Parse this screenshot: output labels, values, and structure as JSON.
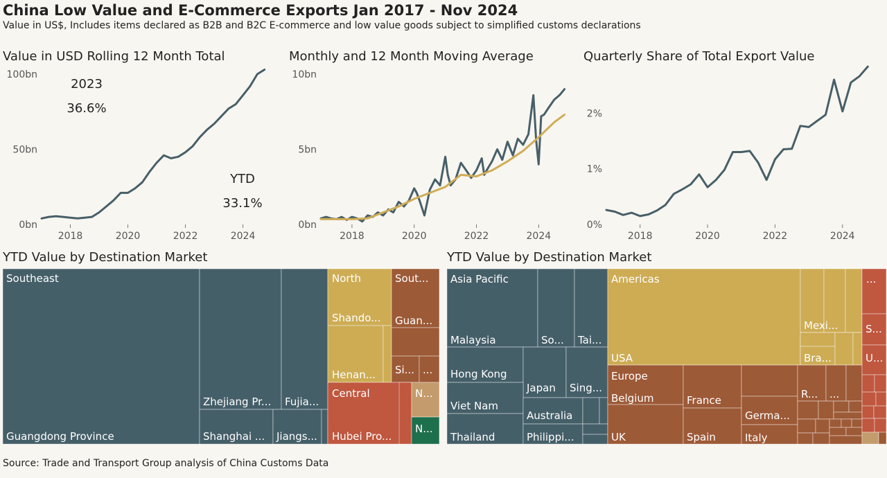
{
  "header": {
    "title": "China Low Value and E-Commerce Exports Jan 2017 - Nov 2024",
    "subtitle": "Value in US$, Includes items declared as B2B and B2C E-commerce and low value goods subject to simplified customs declarations",
    "source": "Source: Trade and Transport Group analysis of China Customs Data"
  },
  "colors": {
    "line": "#475f68",
    "moving_average": "#cfad57",
    "teal_block": "#455f69",
    "gold_block": "#cdac54",
    "brown_block": "#9d5a37",
    "red_block": "#c0573f",
    "tan_block": "#c49b6c",
    "green_block": "#1e6f4b"
  },
  "chart_data": [
    {
      "type": "line",
      "title": "Value in USD Rolling 12 Month Total",
      "x_ticks": [
        "2018",
        "2020",
        "2022",
        "2024"
      ],
      "y_ticks": [
        "0bn",
        "50bn",
        "100bn"
      ],
      "ylim": [
        0,
        100
      ],
      "annotations": {
        "year_label": "2023",
        "year_value": "36.6%",
        "ytd_label": "YTD",
        "ytd_value": "33.1%"
      },
      "series": [
        {
          "x": [
            2017.0,
            2017.25,
            2017.5,
            2017.75,
            2018.0,
            2018.25,
            2018.5,
            2018.75,
            2019.0,
            2019.25,
            2019.5,
            2019.75,
            2020.0,
            2020.25,
            2020.5,
            2020.75,
            2021.0,
            2021.25,
            2021.5,
            2021.75,
            2022.0,
            2022.25,
            2022.5,
            2022.75,
            2023.0,
            2023.25,
            2023.5,
            2023.75,
            2024.0,
            2024.25,
            2024.5,
            2024.75
          ],
          "values": [
            4,
            5,
            5.5,
            5,
            4.5,
            4,
            4.5,
            5,
            8,
            12,
            16,
            21,
            21,
            24,
            28,
            35,
            41,
            46,
            44,
            45,
            48,
            52,
            58,
            63,
            67,
            72,
            77,
            80,
            86,
            92,
            100,
            103
          ]
        }
      ]
    },
    {
      "type": "line",
      "title": "Monthly and 12 Month Moving Average",
      "x_ticks": [
        "2018",
        "2020",
        "2022",
        "2024"
      ],
      "y_ticks": [
        "0bn",
        "5bn",
        "10bn"
      ],
      "ylim": [
        0,
        10
      ],
      "series": [
        {
          "name": "",
          "x": [
            2017.0,
            2017.17,
            2017.33,
            2017.5,
            2017.67,
            2017.83,
            2018.0,
            2018.17,
            2018.33,
            2018.5,
            2018.67,
            2018.83,
            2019.0,
            2019.17,
            2019.33,
            2019.5,
            2019.67,
            2019.83,
            2020.0,
            2020.08,
            2020.17,
            2020.33,
            2020.5,
            2020.67,
            2020.83,
            2021.0,
            2021.08,
            2021.17,
            2021.33,
            2021.5,
            2021.67,
            2021.83,
            2022.0,
            2022.17,
            2022.25,
            2022.33,
            2022.5,
            2022.67,
            2022.83,
            2023.0,
            2023.17,
            2023.33,
            2023.5,
            2023.67,
            2023.83,
            2023.92,
            2024.0,
            2024.08,
            2024.17,
            2024.33,
            2024.5,
            2024.67,
            2024.83
          ],
          "values": [
            0.4,
            0.5,
            0.4,
            0.35,
            0.5,
            0.3,
            0.5,
            0.4,
            0.2,
            0.6,
            0.5,
            0.8,
            0.6,
            1.0,
            0.8,
            1.5,
            1.2,
            1.6,
            2.4,
            2.1,
            1.6,
            0.6,
            2.3,
            3.0,
            2.6,
            4.5,
            3.3,
            2.6,
            3.0,
            4.1,
            3.6,
            3.1,
            3.6,
            4.4,
            3.3,
            3.6,
            4.2,
            5.0,
            4.3,
            5.5,
            4.6,
            5.7,
            5.3,
            6.0,
            8.6,
            5.6,
            4.0,
            7.2,
            7.3,
            7.8,
            8.3,
            8.6,
            9.0
          ]
        },
        {
          "name": "",
          "x": [
            2017.0,
            2017.5,
            2018.0,
            2018.5,
            2019.0,
            2019.5,
            2020.0,
            2020.5,
            2021.0,
            2021.5,
            2022.0,
            2022.5,
            2023.0,
            2023.5,
            2024.0,
            2024.5,
            2024.83
          ],
          "values": [
            0.35,
            0.35,
            0.35,
            0.4,
            0.8,
            1.2,
            1.7,
            2.1,
            2.5,
            3.3,
            3.2,
            3.6,
            4.2,
            4.9,
            5.8,
            6.8,
            7.3
          ]
        }
      ]
    },
    {
      "type": "line",
      "title": "Quarterly Share of Total Export Value",
      "x_ticks": [
        "2018",
        "2020",
        "2022",
        "2024"
      ],
      "y_ticks": [
        "0%",
        "1%",
        "2%"
      ],
      "ylim": [
        0,
        2.7
      ],
      "series": [
        {
          "x": [
            2017.0,
            2017.25,
            2017.5,
            2017.75,
            2018.0,
            2018.25,
            2018.5,
            2018.75,
            2019.0,
            2019.25,
            2019.5,
            2019.75,
            2020.0,
            2020.25,
            2020.5,
            2020.75,
            2021.0,
            2021.25,
            2021.5,
            2021.75,
            2022.0,
            2022.25,
            2022.5,
            2022.75,
            2023.0,
            2023.25,
            2023.5,
            2023.75,
            2024.0,
            2024.25,
            2024.5,
            2024.75
          ],
          "values": [
            0.26,
            0.23,
            0.17,
            0.21,
            0.15,
            0.18,
            0.25,
            0.35,
            0.55,
            0.63,
            0.72,
            0.9,
            0.67,
            0.8,
            0.98,
            1.3,
            1.3,
            1.32,
            1.11,
            0.8,
            1.17,
            1.35,
            1.36,
            1.77,
            1.75,
            1.86,
            1.97,
            2.6,
            2.03,
            2.55,
            2.66,
            2.85
          ]
        }
      ]
    },
    {
      "type": "treemap",
      "title": "YTD Value by Destination Market",
      "groups": [
        {
          "label": "Southeast",
          "color": "#455f69",
          "items": [
            "Guangdong Province",
            "Zhejiang Pr...",
            "Fujia...",
            "Shanghai ...",
            "Jiangs..."
          ]
        },
        {
          "label": "North",
          "color": "#cdac54",
          "items": [
            "Shando...",
            "Henan..."
          ]
        },
        {
          "label": "Sout...",
          "color": "#9d5a37",
          "items": [
            "Guan...",
            "Si...",
            "..."
          ]
        },
        {
          "label": "Central",
          "color": "#c0573f",
          "items": [
            "Hubei Pro..."
          ]
        },
        {
          "label": "N...",
          "color": "#c49b6c",
          "items": []
        },
        {
          "label": "N...",
          "color": "#1e6f4b",
          "items": []
        }
      ]
    },
    {
      "type": "treemap",
      "title": "YTD Value by Destination Market",
      "groups": [
        {
          "label": "Asia Pacific",
          "color": "#455f69",
          "items": [
            "Malaysia",
            "So...",
            "Tai...",
            "Hong Kong",
            "Japan",
            "Sing...",
            "Viet Nam",
            "Australia",
            "Thailand",
            "Philippi..."
          ]
        },
        {
          "label": "Americas",
          "color": "#cdac54",
          "items": [
            "USA",
            "Mexi...",
            "Bra..."
          ]
        },
        {
          "label": "Europe",
          "color": "#9d5a37",
          "items": [
            "Belgium",
            "France",
            "UK",
            "Spain",
            "Germa...",
            "Italy",
            "R...",
            "..."
          ]
        },
        {
          "label": "...",
          "color": "#c0573f",
          "items": [
            "S...",
            "U..."
          ]
        }
      ]
    }
  ]
}
